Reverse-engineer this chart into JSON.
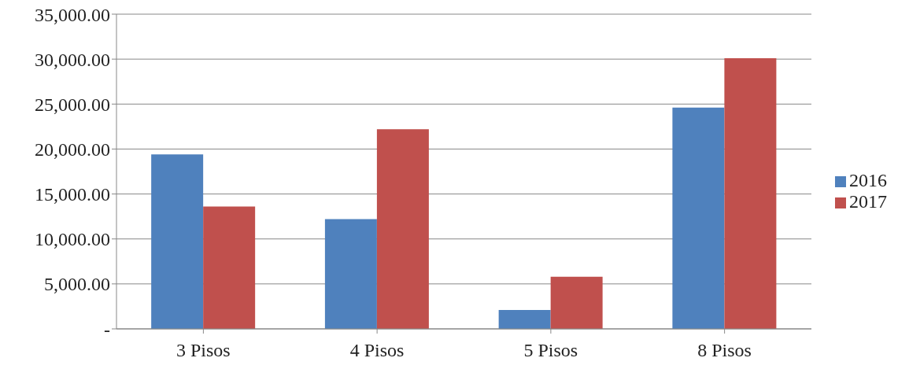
{
  "chart_data": {
    "type": "bar",
    "categories": [
      "3 Pisos",
      "4 Pisos",
      "5 Pisos",
      "8 Pisos"
    ],
    "series": [
      {
        "name": "2016",
        "color": "#4f81bd",
        "values": [
          19400,
          12200,
          2100,
          24600
        ]
      },
      {
        "name": "2017",
        "color": "#c0504d",
        "values": [
          13600,
          22200,
          5800,
          30100
        ]
      }
    ],
    "ylim": [
      0,
      35000
    ],
    "yticks": [
      {
        "value": 0,
        "label": "-"
      },
      {
        "value": 5000,
        "label": "5,000.00"
      },
      {
        "value": 10000,
        "label": "10,000.00"
      },
      {
        "value": 15000,
        "label": "15,000.00"
      },
      {
        "value": 20000,
        "label": "20,000.00"
      },
      {
        "value": 25000,
        "label": "25,000.00"
      },
      {
        "value": 30000,
        "label": "30,000.00"
      },
      {
        "value": 35000,
        "label": "35,000.00"
      }
    ],
    "grid": "y",
    "legend": "right"
  }
}
